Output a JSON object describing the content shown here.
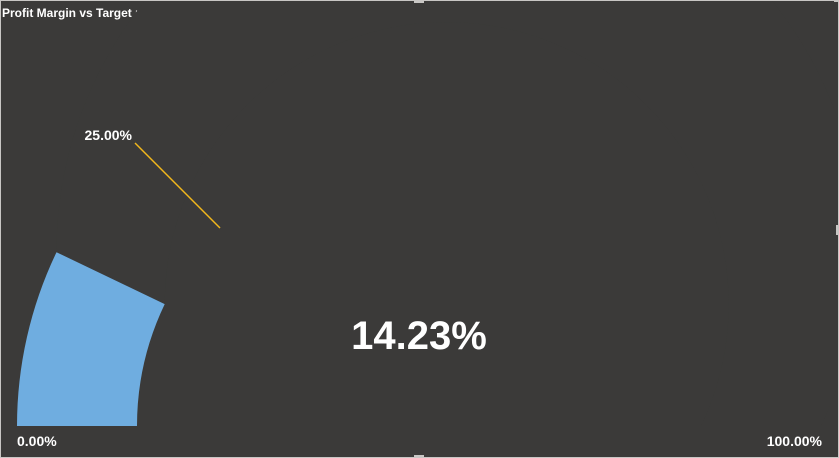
{
  "visual": {
    "title": "Profit Margin vs Target profit Margin"
  },
  "chart_data": {
    "type": "gauge",
    "title": "Profit Margin vs Target profit Margin",
    "min": 0,
    "max": 1,
    "value": 0.1423,
    "target": 0.25,
    "value_label": "14.23%",
    "min_label": "0.00%",
    "max_label": "100.00%",
    "target_label": "25.00%",
    "colors": {
      "fill": "#6fade0",
      "target": "#f2b81c",
      "background": "#3b3a39",
      "text": "#ffffff"
    }
  }
}
